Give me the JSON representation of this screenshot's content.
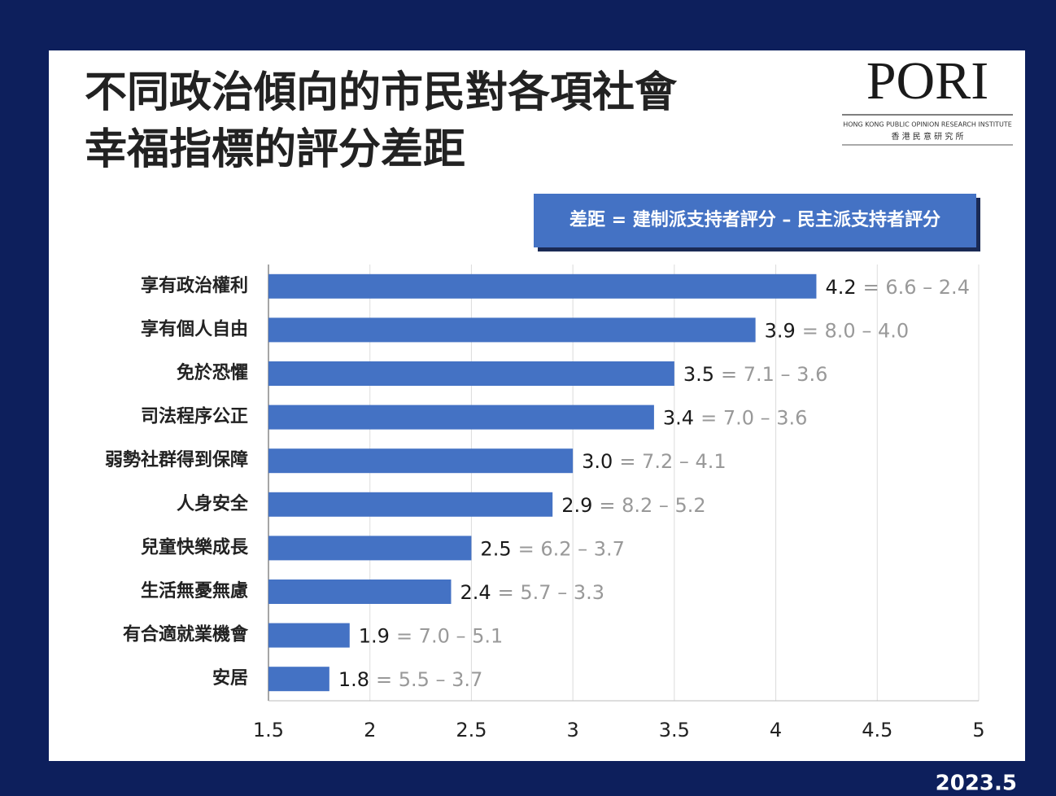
{
  "chart_data": {
    "type": "hbar",
    "title_lines": [
      "不同政治傾向的市民對各項社會",
      "幸福指標的評分差距"
    ],
    "formula": "差距 = 建制派支持者評分 – 民主派支持者評分",
    "logo": {
      "name": "PORI",
      "english": "HONG KONG PUBLIC OPINION RESEARCH INSTITUTE",
      "chinese": "香 港 民 意 研 究 所"
    },
    "date": "2023.5",
    "categories": [
      "享有政治權利",
      "享有個人自由",
      "免於恐懼",
      "司法程序公正",
      "弱勢社群得到保障",
      "人身安全",
      "兒童快樂成長",
      "生活無憂無慮",
      "有合適就業機會",
      "安居"
    ],
    "values": [
      4.2,
      3.9,
      3.5,
      3.4,
      3.0,
      2.9,
      2.5,
      2.4,
      1.9,
      1.8
    ],
    "value_labels": [
      "4.2",
      "3.9",
      "3.5",
      "3.4",
      "3.0",
      "2.9",
      "2.5",
      "2.4",
      "1.9",
      "1.8"
    ],
    "annotations": [
      "= 6.6 – 2.4",
      "= 8.0 – 4.0",
      "= 7.1 – 3.6",
      "= 7.0 – 3.6",
      "= 7.2 – 4.1",
      "= 8.2 – 5.2",
      "= 6.2 – 3.7",
      "= 5.7 – 3.3",
      "= 7.0 – 5.1",
      "= 5.5 – 3.7"
    ],
    "color": "#4472c4",
    "xlim": [
      1.5,
      5
    ],
    "xticks": [
      1.5,
      2,
      2.5,
      3,
      3.5,
      4,
      4.5,
      5
    ],
    "grid": true
  }
}
